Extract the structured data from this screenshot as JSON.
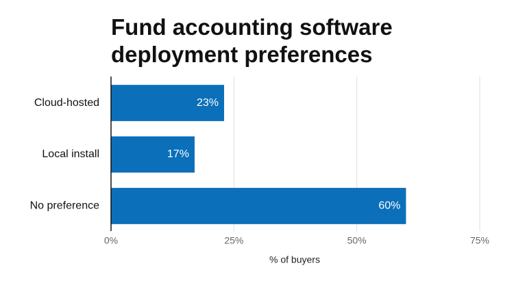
{
  "chart_data": {
    "type": "hbar",
    "title": "Fund accounting software deployment preferences",
    "categories": [
      "Cloud-hosted",
      "Local install",
      "No preference"
    ],
    "values": [
      23,
      17,
      60
    ],
    "value_labels": [
      "23%",
      "17%",
      "60%"
    ],
    "color": "#0b6fba",
    "xlim": [
      0,
      75
    ],
    "xticks": [
      {
        "value": 0,
        "label": "0%"
      },
      {
        "value": 25,
        "label": "25%"
      },
      {
        "value": 50,
        "label": "50%"
      },
      {
        "value": 75,
        "label": "75%"
      }
    ],
    "xlabel": "% of buyers",
    "grid": true
  }
}
